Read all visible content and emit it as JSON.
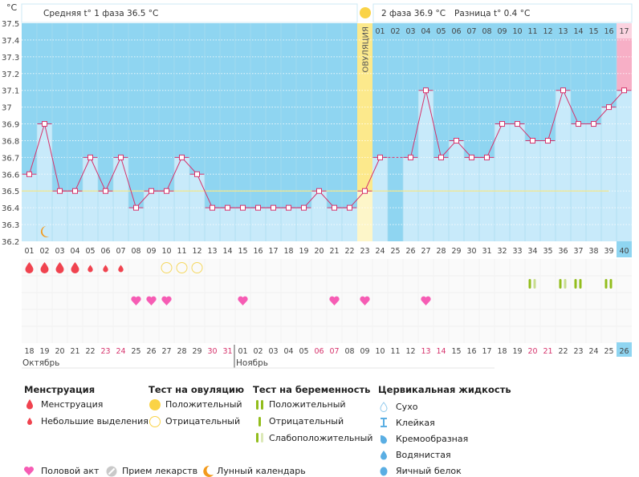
{
  "unit_label": "°C",
  "header": {
    "phase1": "Средняя t° 1 фаза 36.5 °C",
    "phase2": "2 фаза 36.9 °C",
    "diff": "Разница t° 0.4 °C",
    "ovulation_label": "ОВУЛЯЦИЯ"
  },
  "colors": {
    "background": "#8fd5f1",
    "bar": "#c8eafa",
    "line": "#d6336c",
    "coverline": "#f3e68a",
    "ovulation": "#fce98c",
    "pink": "#f7afc6",
    "menstruation": "#f0434f",
    "heart": "#f65cb4",
    "pregnancy": "#92bd1c",
    "pregnancy_light": "#c8dc8e"
  },
  "chart_data": {
    "type": "line",
    "ylabel": "°C",
    "ylim": [
      36.2,
      37.5
    ],
    "yticks": [
      "37.5",
      "37.4",
      "37.3",
      "37.2",
      "37.1",
      "37",
      "36.9",
      "36.8",
      "36.7",
      "36.6",
      "36.5",
      "36.4",
      "36.3",
      "36.2"
    ],
    "grid": true,
    "cycle_days": [
      "01",
      "02",
      "03",
      "04",
      "05",
      "06",
      "07",
      "08",
      "09",
      "10",
      "11",
      "12",
      "13",
      "14",
      "15",
      "16",
      "17",
      "18",
      "19",
      "20",
      "21",
      "22",
      "23",
      "24",
      "25",
      "26",
      "27",
      "28",
      "29",
      "30",
      "31",
      "32",
      "33",
      "34",
      "35",
      "36",
      "37",
      "38",
      "39",
      "40"
    ],
    "temperatures": [
      36.6,
      36.9,
      36.5,
      36.5,
      36.7,
      36.5,
      36.7,
      36.4,
      36.5,
      36.5,
      36.7,
      36.6,
      36.4,
      36.4,
      36.4,
      36.4,
      36.4,
      36.4,
      36.4,
      36.5,
      36.4,
      36.4,
      36.5,
      36.7,
      null,
      36.7,
      37.1,
      36.7,
      36.8,
      36.7,
      36.7,
      36.9,
      36.9,
      36.8,
      36.8,
      37.1,
      36.9,
      36.9,
      37.0,
      37.1
    ],
    "coverline": 36.5,
    "ovulation_day": 23,
    "dpo_labels": [
      "01",
      "02",
      "03",
      "04",
      "05",
      "06",
      "07",
      "08",
      "09",
      "10",
      "11",
      "12",
      "13",
      "14",
      "15",
      "16",
      "17"
    ],
    "dates": [
      "18",
      "19",
      "20",
      "21",
      "22",
      "23",
      "24",
      "25",
      "26",
      "27",
      "28",
      "29",
      "30",
      "31",
      "01",
      "02",
      "03",
      "04",
      "05",
      "06",
      "07",
      "08",
      "09",
      "10",
      "11",
      "12",
      "13",
      "14",
      "15",
      "16",
      "17",
      "18",
      "19",
      "20",
      "21",
      "22",
      "23",
      "24",
      "25",
      "26"
    ],
    "weekend_dates_idx": [
      5,
      6,
      12,
      13,
      19,
      20,
      26,
      27,
      33,
      34
    ],
    "months": [
      "Октябрь",
      "Ноябрь"
    ],
    "menstruation": {
      "heavy": [
        1,
        2,
        3,
        4
      ],
      "light": [
        5,
        6,
        7
      ]
    },
    "ovulation_test_negative": [
      10,
      11,
      12
    ],
    "pregnancy_test": {
      "weak_positive": [
        34,
        36
      ],
      "positive": [
        37,
        39
      ]
    },
    "intercourse": [
      8,
      9,
      10,
      15,
      21,
      23,
      27
    ],
    "moon": [
      2
    ]
  },
  "legend": {
    "menstruation": {
      "title": "Менструация",
      "items": [
        "Менструация",
        "Небольшие выделения"
      ]
    },
    "ovulation_test": {
      "title": "Тест на овуляцию",
      "items": [
        "Положительный",
        "Отрицательный"
      ]
    },
    "pregnancy_test": {
      "title": "Тест на беременность",
      "items": [
        "Положительный",
        "Отрицательный",
        "Слабоположительный"
      ]
    },
    "cervical": {
      "title": "Цервикальная жидкость",
      "items": [
        "Сухо",
        "Клейкая",
        "Кремообразная",
        "Водянистая",
        "Яичный белок"
      ]
    },
    "other": [
      "Половой акт",
      "Прием лекарств",
      "Лунный календарь"
    ]
  }
}
